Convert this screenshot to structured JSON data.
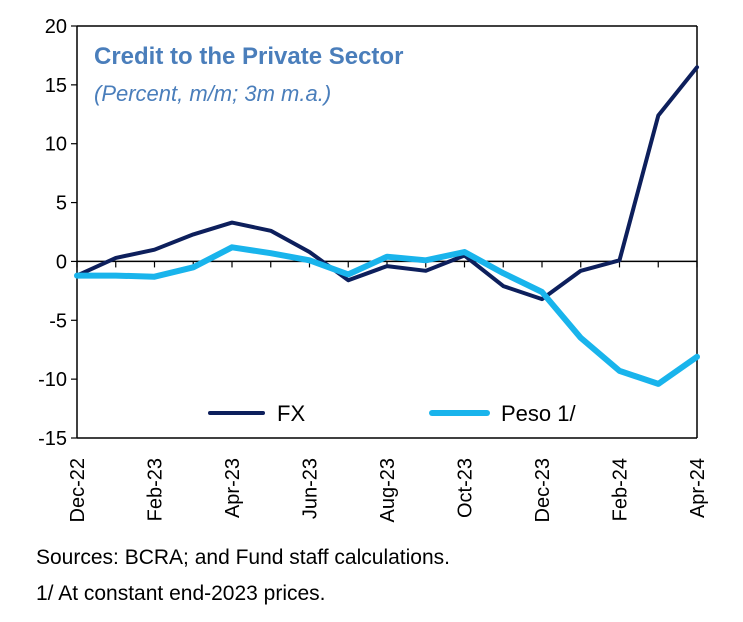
{
  "chart_data": {
    "type": "line",
    "title": "Credit to the Private Sector",
    "subtitle": "(Percent, m/m; 3m m.a.)",
    "title_color": "#4a7ebb",
    "categories": [
      "Dec-22",
      "Jan-23",
      "Feb-23",
      "Mar-23",
      "Apr-23",
      "May-23",
      "Jun-23",
      "Jul-23",
      "Aug-23",
      "Sep-23",
      "Oct-23",
      "Nov-23",
      "Dec-23",
      "Jan-24",
      "Feb-24",
      "Mar-24",
      "Apr-24"
    ],
    "tick_labels": [
      "Dec-22",
      "Feb-23",
      "Apr-23",
      "Jun-23",
      "Aug-23",
      "Oct-23",
      "Dec-23",
      "Feb-24",
      "Apr-24"
    ],
    "ylim": [
      -15,
      20
    ],
    "yticks": [
      "20",
      "15",
      "10",
      "5",
      "0",
      "-5",
      "-10",
      "-15"
    ],
    "xlabel": "",
    "ylabel": "",
    "grid": false,
    "legend_position": "bottom-center",
    "series": [
      {
        "name": "FX",
        "color": "#0d1f5c",
        "values": [
          -1.2,
          0.3,
          1.0,
          2.3,
          3.3,
          2.6,
          0.8,
          -1.6,
          -0.4,
          -0.8,
          0.5,
          -2.1,
          -3.2,
          -0.8,
          0.1,
          12.4,
          16.5
        ]
      },
      {
        "name": "Peso 1/",
        "color": "#19b4ec",
        "values": [
          -1.2,
          -1.2,
          -1.3,
          -0.5,
          1.2,
          0.7,
          0.1,
          -1.1,
          0.4,
          0.1,
          0.8,
          -1.0,
          -2.6,
          -6.5,
          -9.3,
          -10.4,
          -8.1
        ]
      }
    ]
  },
  "notes": {
    "sources": "Sources: BCRA; and Fund staff calculations.",
    "footnote": "1/ At constant end-2023 prices."
  }
}
